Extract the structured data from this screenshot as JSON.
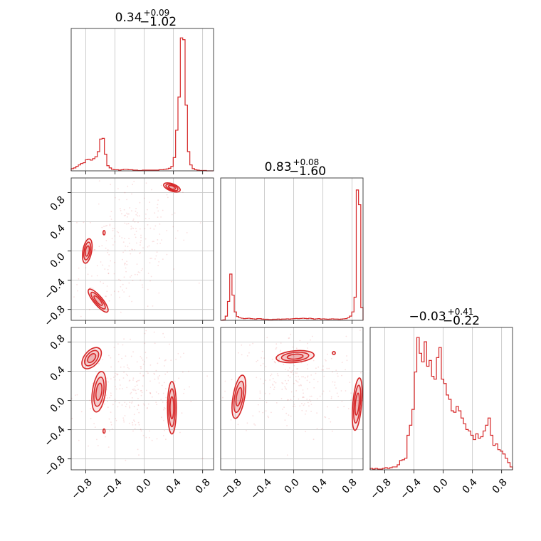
{
  "chart_data": {
    "type": "corner",
    "color": "#d62728",
    "grid": true,
    "titles": [
      {
        "value": "0.34",
        "plus": "+0.09",
        "minus": "−1.02"
      },
      {
        "value": "0.83",
        "plus": "+0.08",
        "minus": "−1.60"
      },
      {
        "value": "−0.03",
        "plus": "+0.41",
        "minus": "−0.22"
      }
    ],
    "ticks": [
      -0.8,
      -0.4,
      0.0,
      0.4,
      0.8
    ],
    "tick_labels": [
      "−0.8",
      "−0.4",
      "0.0",
      "0.4",
      "0.8"
    ],
    "xlim": [
      -1.0,
      0.95
    ],
    "ylim_lower": [
      -0.95,
      1.0
    ],
    "hist": [
      {
        "counts": [
          6,
          8,
          12,
          16,
          20,
          22,
          30,
          31,
          29,
          33,
          38,
          52,
          86,
          88,
          45,
          14,
          8,
          4,
          3,
          3,
          2,
          3,
          4,
          4,
          3,
          3,
          2,
          2,
          1,
          1,
          2,
          2,
          2,
          2,
          2,
          2,
          2,
          3,
          3,
          4,
          5,
          7,
          12,
          36,
          110,
          200,
          360,
          355,
          178,
          52,
          16,
          6,
          3,
          2,
          1,
          1,
          1,
          0,
          0,
          0
        ],
        "max": 370
      },
      {
        "counts": [
          0,
          2,
          20,
          90,
          220,
          120,
          40,
          18,
          12,
          10,
          8,
          9,
          10,
          8,
          7,
          6,
          8,
          8,
          6,
          5,
          5,
          4,
          4,
          5,
          5,
          6,
          5,
          6,
          6,
          7,
          6,
          7,
          8,
          9,
          8,
          9,
          10,
          9,
          8,
          10,
          8,
          6,
          7,
          8,
          6,
          7,
          6,
          5,
          6,
          7,
          6,
          6,
          5,
          6,
          7,
          8,
          12,
          20,
          40,
          110,
          620,
          550,
          60
        ],
        "max": 650
      },
      {
        "counts": [
          2,
          1,
          2,
          1,
          1,
          2,
          3,
          2,
          3,
          4,
          4,
          7,
          13,
          14,
          16,
          48,
          62,
          84,
          136,
          184,
          162,
          150,
          178,
          144,
          152,
          130,
          126,
          156,
          170,
          126,
          120,
          104,
          98,
          82,
          80,
          88,
          82,
          72,
          64,
          56,
          54,
          48,
          42,
          50,
          44,
          46,
          54,
          62,
          72,
          48,
          34,
          36,
          28,
          26,
          22,
          16,
          10,
          4
        ],
        "max": 190
      }
    ]
  }
}
